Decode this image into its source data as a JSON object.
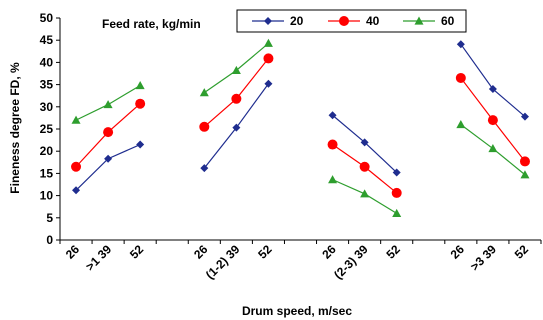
{
  "chart_data": {
    "type": "line",
    "title": "",
    "xlabel": "Drum speed, m/sec",
    "ylabel": "Fineness degree FD, %",
    "ylim": [
      0,
      50
    ],
    "yticks": [
      0,
      5,
      10,
      15,
      20,
      25,
      30,
      35,
      40,
      45,
      50
    ],
    "grid": false,
    "legend": {
      "title": "Feed rate, kg/min",
      "placement": "top"
    },
    "groups": [
      {
        "categories": [
          "26",
          ">1 39",
          "52"
        ]
      },
      {
        "categories": [
          "26",
          "(1-2) 39",
          "52"
        ]
      },
      {
        "categories": [
          "26",
          "(2-3) 39",
          "52"
        ]
      },
      {
        "categories": [
          "26",
          ">3 39",
          "52"
        ]
      }
    ],
    "series": [
      {
        "name": "20",
        "color": "#1f2d8f",
        "marker": "diamond",
        "values": [
          [
            11.2,
            18.3,
            21.5
          ],
          [
            16.2,
            25.3,
            35.2
          ],
          [
            28.1,
            22.0,
            15.2
          ],
          [
            44.1,
            34.0,
            27.8
          ]
        ]
      },
      {
        "name": "40",
        "color": "#ff0000",
        "marker": "circle",
        "values": [
          [
            16.5,
            24.3,
            30.7
          ],
          [
            25.5,
            31.8,
            40.9
          ],
          [
            21.5,
            16.5,
            10.6
          ],
          [
            36.5,
            27.0,
            17.7
          ]
        ]
      },
      {
        "name": "60",
        "color": "#2e9e2e",
        "marker": "triangle",
        "values": [
          [
            27.0,
            30.5,
            34.8
          ],
          [
            33.2,
            38.2,
            44.3
          ],
          [
            13.6,
            10.4,
            6.0
          ],
          [
            26.0,
            20.6,
            14.7
          ]
        ]
      }
    ]
  }
}
